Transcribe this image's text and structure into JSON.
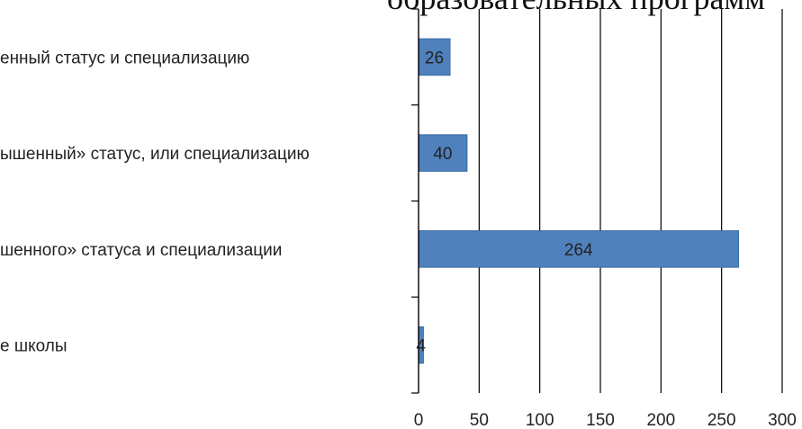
{
  "chart_data": {
    "type": "bar",
    "orientation": "horizontal",
    "title": "образовательных программ",
    "categories": [
      "е школы",
      "шенного» статуса и специализации",
      "ышенный» статус, или специализацию",
      "енный статус и специализацию"
    ],
    "values": [
      4,
      264,
      40,
      26
    ],
    "xlim": [
      0,
      300
    ],
    "xticks": [
      0,
      50,
      100,
      150,
      200,
      250,
      300
    ],
    "grid": true,
    "legend": "none",
    "colors": {
      "bar": "#4f81bd",
      "bar_edge": "#3a6aa3",
      "grid": "#000000"
    }
  }
}
